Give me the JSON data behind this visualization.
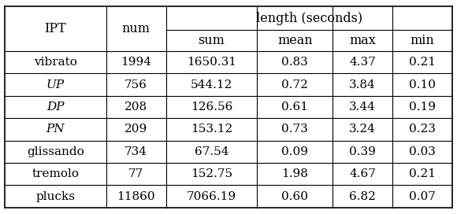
{
  "headers_col1": "IPT",
  "headers_col2": "num",
  "headers_group": "length (seconds)",
  "headers_sub": [
    "sum",
    "mean",
    "max",
    "min"
  ],
  "rows": [
    {
      "ipt": "vibrato",
      "italic": false,
      "num": "1994",
      "sum": "1650.31",
      "mean": "0.83",
      "max": "4.37",
      "min": "0.21"
    },
    {
      "ipt": "UP",
      "italic": true,
      "num": "756",
      "sum": "544.12",
      "mean": "0.72",
      "max": "3.84",
      "min": "0.10"
    },
    {
      "ipt": "DP",
      "italic": true,
      "num": "208",
      "sum": "126.56",
      "mean": "0.61",
      "max": "3.44",
      "min": "0.19"
    },
    {
      "ipt": "PN",
      "italic": true,
      "num": "209",
      "sum": "153.12",
      "mean": "0.73",
      "max": "3.24",
      "min": "0.23"
    },
    {
      "ipt": "glissando",
      "italic": false,
      "num": "734",
      "sum": "67.54",
      "mean": "0.09",
      "max": "0.39",
      "min": "0.03"
    },
    {
      "ipt": "tremolo",
      "italic": false,
      "num": "77",
      "sum": "152.75",
      "mean": "1.98",
      "max": "4.67",
      "min": "0.21"
    },
    {
      "ipt": "plucks",
      "italic": false,
      "num": "11860",
      "sum": "7066.19",
      "mean": "0.60",
      "max": "6.82",
      "min": "0.07"
    }
  ],
  "bg_color": "#ffffff",
  "text_color": "#000000",
  "line_color": "#000000",
  "font_size": 11,
  "header_font_size": 11
}
